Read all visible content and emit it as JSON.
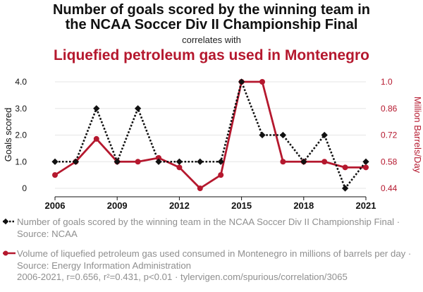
{
  "header": {
    "title_line1": "Number of goals scored by the winning team in",
    "title_line2": "the NCAA Soccer Div II Championship Final",
    "correlates": "correlates with",
    "title_second": "Liquefied petroleum gas used in Montenegro"
  },
  "legend": {
    "series1": "Number of goals scored by the winning team in the NCAA Soccer Div II Championship Final · Source: NCAA",
    "series2": "Volume of liquefied petroleum gas used consumed in Montenegro in millions of barrels per day · Source: Energy Information Administration"
  },
  "footer": "2006-2021, r=0.656, r²=0.431, p<0.01 · tylervigen.com/spurious/correlation/3065",
  "colors": {
    "series1": "#111111",
    "series2": "#b5182e"
  },
  "chart_data": {
    "type": "line",
    "x": [
      2006,
      2007,
      2008,
      2009,
      2010,
      2011,
      2012,
      2013,
      2014,
      2015,
      2016,
      2017,
      2018,
      2019,
      2020,
      2021
    ],
    "xticks": [
      "2006",
      "2009",
      "2012",
      "2015",
      "2018",
      "2021"
    ],
    "ylabel_left": "Goals scored",
    "ylabel_right": "Million Barrels/Day",
    "yticks_left": [
      "0",
      "1.0",
      "2.0",
      "3.0",
      "4.0"
    ],
    "yticks_right": [
      "0.44",
      "0.58",
      "0.72",
      "0.86",
      "1.0"
    ],
    "ylim_left": [
      0,
      4
    ],
    "ylim_right": [
      0.44,
      1.0
    ],
    "series": [
      {
        "name": "Goals scored",
        "axis": "left",
        "values": [
          1,
          1,
          3,
          1,
          3,
          1,
          1,
          1,
          1,
          4,
          2,
          2,
          1,
          2,
          0,
          1
        ]
      },
      {
        "name": "LPG used",
        "axis": "right",
        "values": [
          0.51,
          0.58,
          0.7,
          0.58,
          0.58,
          0.6,
          0.55,
          0.44,
          0.51,
          1.0,
          1.0,
          0.58,
          0.58,
          0.58,
          0.55,
          0.55
        ]
      }
    ]
  }
}
